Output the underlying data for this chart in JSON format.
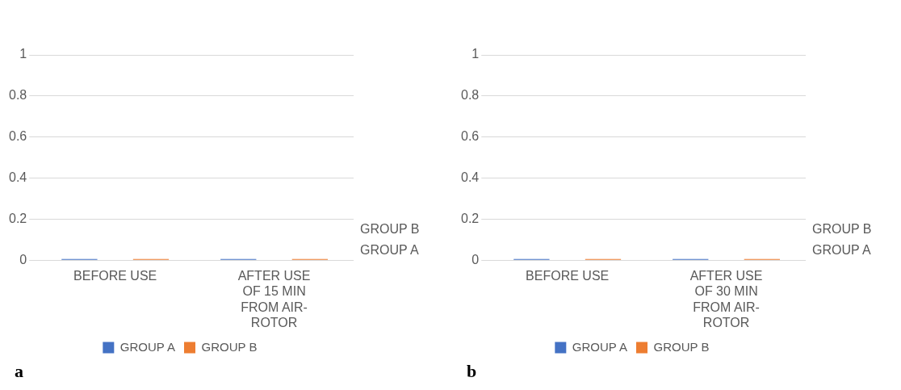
{
  "chart_data": [
    {
      "type": "bar",
      "categories": [
        "BEFORE USE",
        "AFTER USE OF 15 MIN FROM AIR-ROTOR"
      ],
      "series": [
        {
          "name": "GROUP A",
          "color": "#4472c4",
          "values": [
            0,
            0
          ]
        },
        {
          "name": "GROUP B",
          "color": "#ed7d31",
          "values": [
            0,
            0
          ]
        }
      ],
      "ylim": [
        0,
        1
      ],
      "yticks": [
        0,
        0.2,
        0.4,
        0.6,
        0.8,
        1
      ],
      "grid": "y",
      "legend": "bottom",
      "annotations": [
        "a"
      ]
    },
    {
      "type": "bar",
      "categories": [
        "BEFORE USE",
        "AFTER USE OF 30 MIN FROM AIR-ROTOR"
      ],
      "series": [
        {
          "name": "GROUP A",
          "color": "#4472c4",
          "values": [
            0,
            0
          ]
        },
        {
          "name": "GROUP B",
          "color": "#ed7d31",
          "values": [
            0,
            0
          ]
        }
      ],
      "ylim": [
        0,
        1
      ],
      "yticks": [
        0,
        0.2,
        0.4,
        0.6,
        0.8,
        1
      ],
      "grid": "y",
      "legend": "bottom",
      "annotations": [
        "b"
      ]
    }
  ]
}
